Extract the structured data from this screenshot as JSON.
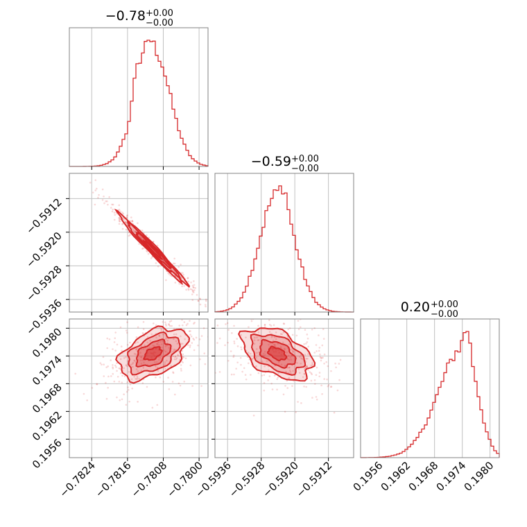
{
  "chart_data": [
    {
      "type": "corner",
      "title": "",
      "color": "#d62728",
      "parameters": [
        {
          "title": {
            "value": "−0.78",
            "plus": "+0.00",
            "minus": "−0.00"
          },
          "range": [
            -0.7829,
            -0.7798
          ],
          "ticks": [
            -0.7824,
            -0.7816,
            -0.7808,
            -0.78
          ],
          "tick_labels": [
            "−0.7824",
            "−0.7816",
            "−0.7808",
            "−0.7800"
          ],
          "hist_mean": -0.78103,
          "hist_sd": 0.00038,
          "hist_bumps": [
            [
              -0.7814,
              0.25,
              7e-05
            ],
            [
              -0.78115,
              0.12,
              8e-05
            ]
          ]
        },
        {
          "title": {
            "value": "−0.59",
            "plus": "+0.00",
            "minus": "−0.00"
          },
          "range": [
            -0.5939,
            -0.5906
          ],
          "ticks": [
            -0.5936,
            -0.5928,
            -0.592,
            -0.5912
          ],
          "tick_labels": [
            "−0.5936",
            "−0.5928",
            "−0.5920",
            "−0.5912"
          ],
          "hist_mean": -0.59242,
          "hist_sd": 0.00042,
          "hist_bumps": [
            [
              -0.59225,
              0.12,
              8e-05
            ]
          ]
        },
        {
          "title": {
            "value": "0.20",
            "plus": "+0.00",
            "minus": "−0.00"
          },
          "range": [
            0.1952,
            0.1982
          ],
          "ticks": [
            0.1956,
            0.1962,
            0.1968,
            0.1974,
            0.198
          ],
          "tick_labels": [
            "0.1956",
            "0.1962",
            "0.1968",
            "0.1974",
            "0.1980"
          ],
          "hist_mean": 0.19745,
          "hist_sd": 0.00028,
          "hist_left_tail": 0.00055,
          "hist_bumps": [
            [
              0.1975,
              0.18,
              6e-05
            ]
          ]
        }
      ],
      "pairs": [
        {
          "x_param": 0,
          "y_param": 1,
          "correlation": -0.985
        },
        {
          "x_param": 0,
          "y_param": 2,
          "correlation": 0.45
        },
        {
          "x_param": 1,
          "y_param": 2,
          "correlation": -0.45
        }
      ],
      "grid": true
    }
  ]
}
